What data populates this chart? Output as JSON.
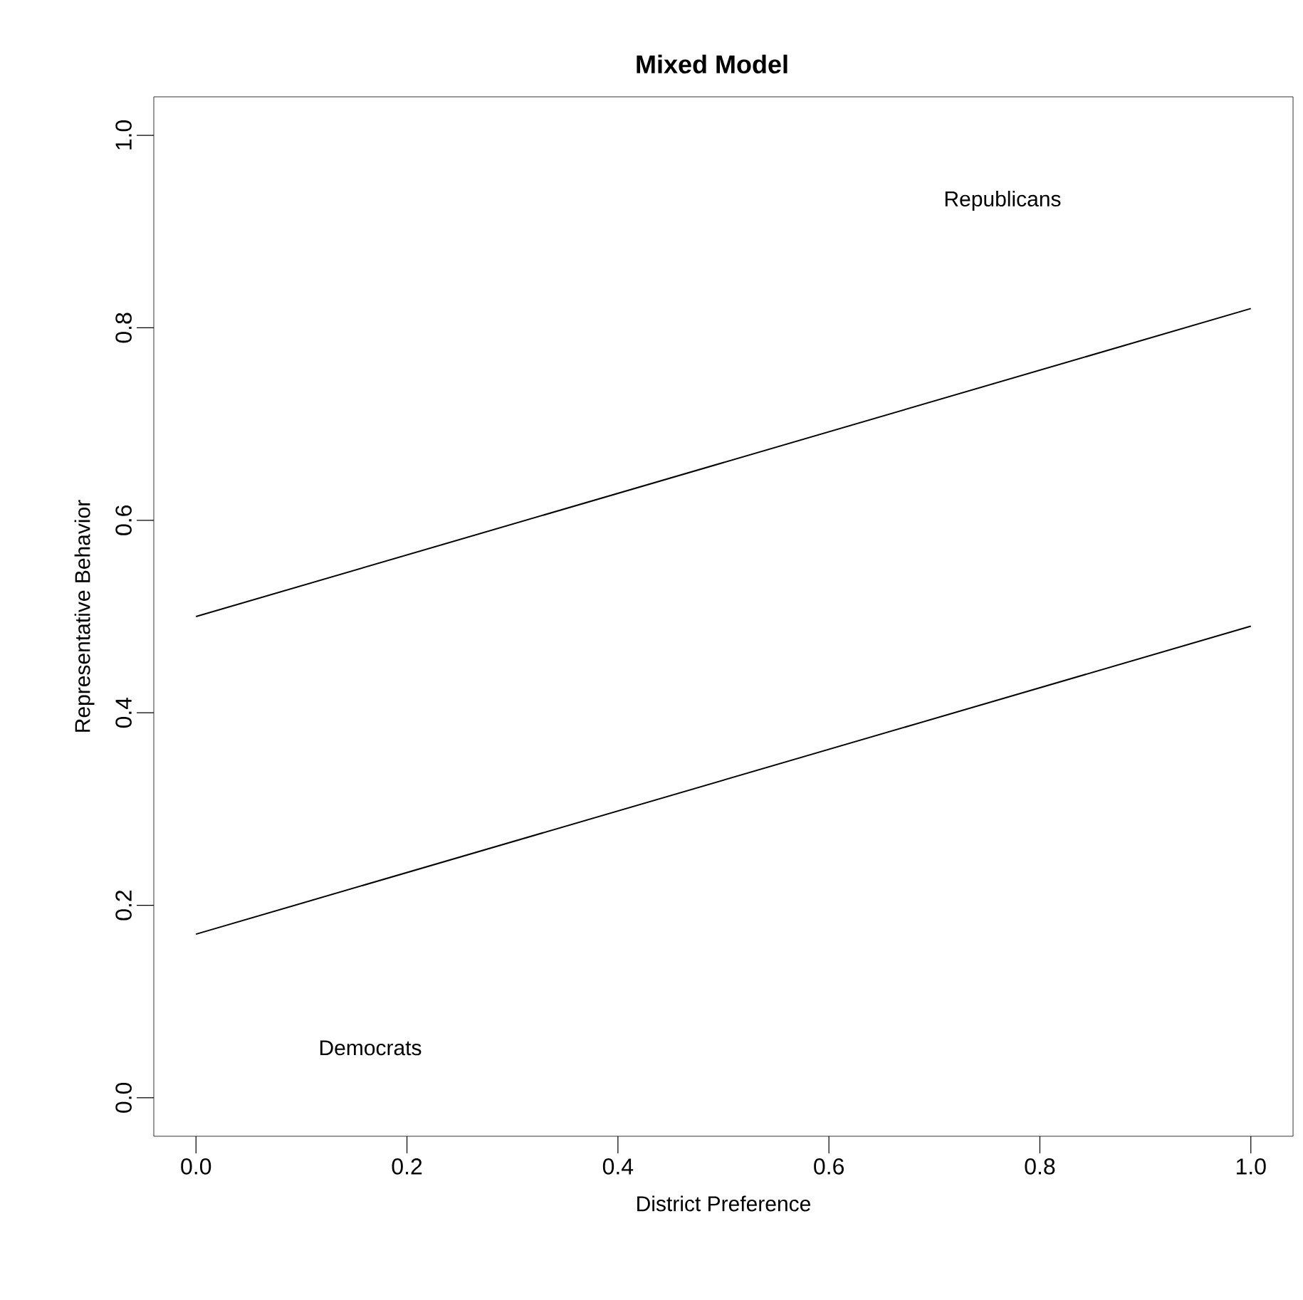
{
  "chart_data": {
    "type": "line",
    "title": "Mixed Model",
    "xlabel": "District Preference",
    "ylabel": "Representative Behavior",
    "x": [
      0,
      1
    ],
    "series": [
      {
        "color": "#000000",
        "values": [
          0.5,
          0.82
        ]
      },
      {
        "color": "#000000",
        "values": [
          0.17,
          0.49
        ]
      }
    ],
    "annotations": [
      "Republicans",
      "Democrats"
    ],
    "xlim": [
      -0.04,
      1.04
    ],
    "ylim": [
      -0.04,
      1.04
    ],
    "xticks": [
      {
        "value": 0,
        "label": "0.0"
      },
      {
        "value": 0.2,
        "label": "0.2"
      },
      {
        "value": 0.4,
        "label": "0.4"
      },
      {
        "value": 0.6,
        "label": "0.6"
      },
      {
        "value": 0.8,
        "label": "0.8"
      },
      {
        "value": 1,
        "label": "1.0"
      }
    ],
    "yticks": [
      {
        "value": 0,
        "label": "0.0"
      },
      {
        "value": 0.2,
        "label": "0.2"
      },
      {
        "value": 0.4,
        "label": "0.4"
      },
      {
        "value": 0.6,
        "label": "0.6"
      },
      {
        "value": 0.8,
        "label": "0.8"
      },
      {
        "value": 1,
        "label": "1.0"
      }
    ]
  }
}
